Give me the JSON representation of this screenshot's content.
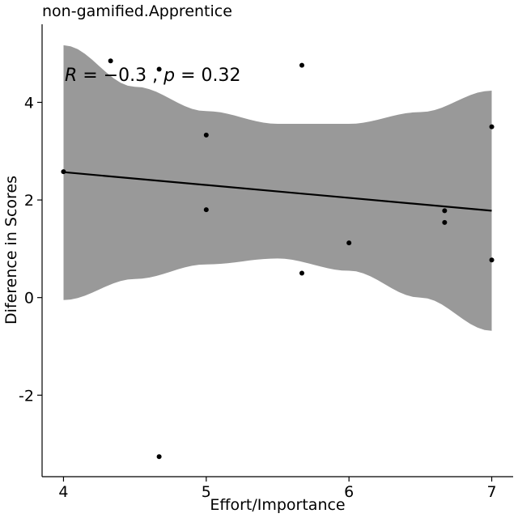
{
  "chart_data": {
    "type": "scatter",
    "title": "non-gamified.Apprentice",
    "xlabel": "Effort/Importance",
    "ylabel": "Diference in Scores",
    "xlim": [
      3.85,
      7.15
    ],
    "ylim": [
      -3.67,
      5.6
    ],
    "x_ticks": [
      4,
      5,
      6,
      7
    ],
    "y_ticks": [
      -2,
      0,
      2,
      4
    ],
    "x_tick_labels": [
      "4",
      "5",
      "6",
      "7"
    ],
    "y_tick_labels": [
      "-2",
      "0",
      "2",
      "4"
    ],
    "grid": false,
    "points": [
      {
        "x": 4.0,
        "y": 2.58
      },
      {
        "x": 4.33,
        "y": 4.85
      },
      {
        "x": 4.67,
        "y": 4.68
      },
      {
        "x": 4.67,
        "y": -3.26
      },
      {
        "x": 5.0,
        "y": 3.33
      },
      {
        "x": 5.0,
        "y": 1.8
      },
      {
        "x": 5.67,
        "y": 4.76
      },
      {
        "x": 5.67,
        "y": 0.5
      },
      {
        "x": 6.0,
        "y": 1.12
      },
      {
        "x": 6.67,
        "y": 1.78
      },
      {
        "x": 6.67,
        "y": 1.54
      },
      {
        "x": 7.0,
        "y": 3.5
      },
      {
        "x": 7.0,
        "y": 0.77
      }
    ],
    "regression": {
      "x": [
        4.0,
        7.0
      ],
      "y": [
        2.57,
        1.78
      ]
    },
    "confidence_band": {
      "x": [
        4.0,
        4.5,
        5.0,
        5.5,
        6.0,
        6.5,
        7.0
      ],
      "upper": [
        5.17,
        4.32,
        3.82,
        3.56,
        3.56,
        3.8,
        4.24
      ],
      "lower": [
        -0.05,
        0.38,
        0.68,
        0.8,
        0.55,
        0.0,
        -0.68
      ]
    },
    "colors": {
      "points": "#000000",
      "line": "#000000",
      "band": "#999999",
      "axis": "#000000"
    },
    "annotation": {
      "r_symbol": "R",
      "r_value": " = −0.3 , ",
      "p_symbol": "p",
      "p_value": " = 0.32"
    }
  }
}
